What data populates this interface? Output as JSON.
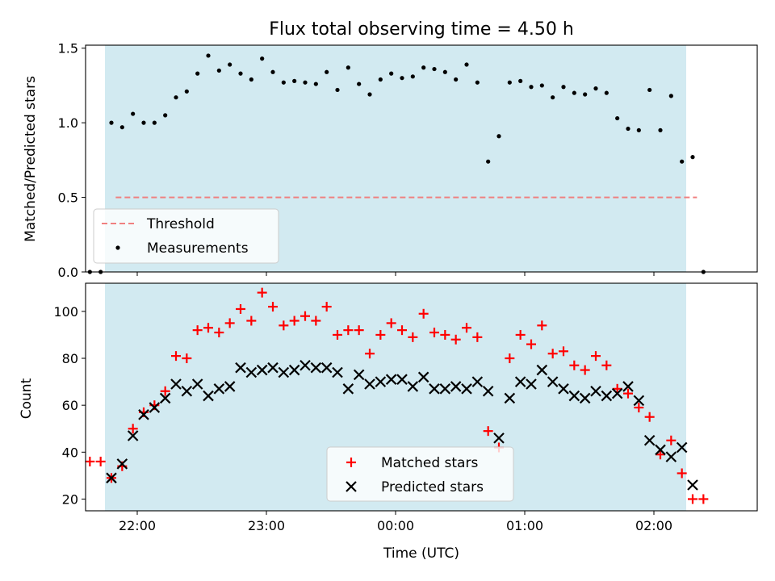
{
  "chart_data": [
    {
      "type": "scatter",
      "title": "Flux total observing time = 4.50 h",
      "xlabel": "",
      "ylabel": "Matched/Predicted stars",
      "xlim": [
        "21:36",
        "02:48"
      ],
      "ylim": [
        0,
        1.52
      ],
      "x_tick_labels_visible": false,
      "x_ticks": [
        "22:00",
        "23:00",
        "00:00",
        "01:00",
        "02:00"
      ],
      "y_ticks": [
        0.0,
        0.5,
        1.0,
        1.5
      ],
      "y_tick_labels": [
        "0.0",
        "0.5",
        "1.0",
        "1.5"
      ],
      "shaded_span": {
        "start": "21:45",
        "end": "02:15",
        "color": "#add8e6"
      },
      "threshold": {
        "name": "Threshold",
        "value": 0.5,
        "x_start": "21:50",
        "x_end": "02:20",
        "color": "#f08080",
        "style": "dashed"
      },
      "legend": {
        "placement": "lower-left",
        "entries": [
          "Threshold",
          "Measurements"
        ]
      },
      "series": [
        {
          "name": "Measurements",
          "marker": "dot",
          "color": "#000000",
          "x": [
            "21:48",
            "21:53",
            "21:58",
            "22:03",
            "22:08",
            "22:13",
            "22:18",
            "22:23",
            "22:28",
            "22:33",
            "22:38",
            "22:43",
            "22:48",
            "22:53",
            "22:58",
            "23:03",
            "23:08",
            "23:13",
            "23:18",
            "23:23",
            "23:28",
            "23:33",
            "23:38",
            "23:43",
            "23:48",
            "23:53",
            "23:58",
            "00:03",
            "00:08",
            "00:13",
            "00:18",
            "00:23",
            "00:28",
            "00:33",
            "00:38",
            "00:43",
            "00:48",
            "00:53",
            "00:58",
            "01:03",
            "01:08",
            "01:13",
            "01:18",
            "01:23",
            "01:28",
            "01:33",
            "01:38",
            "01:43",
            "01:48",
            "01:53",
            "01:58",
            "02:03",
            "02:08",
            "02:13"
          ],
          "y": [
            1.0,
            0.97,
            1.06,
            1.0,
            1.0,
            1.05,
            1.17,
            1.21,
            1.33,
            1.45,
            1.35,
            1.39,
            1.33,
            1.29,
            1.43,
            1.34,
            1.27,
            1.28,
            1.27,
            1.26,
            1.34,
            1.22,
            1.37,
            1.26,
            1.19,
            1.29,
            1.33,
            1.3,
            1.31,
            1.37,
            1.36,
            1.34,
            1.29,
            1.39,
            1.27,
            0.74,
            0.91,
            1.27,
            1.28,
            1.24,
            1.25,
            1.17,
            1.24,
            1.2,
            1.19,
            1.23,
            1.2,
            1.03,
            0.96,
            0.95,
            1.22,
            0.95,
            1.18,
            0.74
          ]
        }
      ],
      "extra_points": {
        "x": [
          "21:38",
          "21:43",
          "02:18",
          "02:23"
        ],
        "y": [
          0.0,
          0.0,
          0.77,
          0.0
        ]
      }
    },
    {
      "type": "scatter",
      "title": "",
      "xlabel": "Time (UTC)",
      "ylabel": "Count",
      "xlim": [
        "21:36",
        "02:48"
      ],
      "ylim": [
        15,
        112
      ],
      "x_ticks": [
        "22:00",
        "23:00",
        "00:00",
        "01:00",
        "02:00"
      ],
      "x_tick_labels": [
        "22:00",
        "23:00",
        "00:00",
        "01:00",
        "02:00"
      ],
      "y_ticks": [
        20,
        40,
        60,
        80,
        100
      ],
      "y_tick_labels": [
        "20",
        "40",
        "60",
        "80",
        "100"
      ],
      "shaded_span": {
        "start": "21:45",
        "end": "02:15",
        "color": "#add8e6"
      },
      "legend": {
        "placement": "lower-center",
        "entries": [
          "Matched stars",
          "Predicted stars"
        ]
      },
      "series": [
        {
          "name": "Matched stars",
          "marker": "plus",
          "color": "#ff0000",
          "x": [
            "21:38",
            "21:43",
            "21:48",
            "21:53",
            "21:58",
            "22:03",
            "22:08",
            "22:13",
            "22:18",
            "22:23",
            "22:28",
            "22:33",
            "22:38",
            "22:43",
            "22:48",
            "22:53",
            "22:58",
            "23:03",
            "23:08",
            "23:13",
            "23:18",
            "23:23",
            "23:28",
            "23:33",
            "23:38",
            "23:43",
            "23:48",
            "23:53",
            "23:58",
            "00:03",
            "00:08",
            "00:13",
            "00:18",
            "00:23",
            "00:28",
            "00:33",
            "00:38",
            "00:43",
            "00:48",
            "00:53",
            "00:58",
            "01:03",
            "01:08",
            "01:13",
            "01:18",
            "01:23",
            "01:28",
            "01:33",
            "01:38",
            "01:43",
            "01:48",
            "01:53",
            "01:58",
            "02:03",
            "02:08",
            "02:13",
            "02:18",
            "02:23"
          ],
          "y": [
            36,
            36,
            29,
            34,
            50,
            57,
            60,
            66,
            81,
            80,
            92,
            93,
            91,
            95,
            101,
            96,
            108,
            102,
            94,
            96,
            98,
            96,
            102,
            90,
            92,
            92,
            82,
            90,
            95,
            92,
            89,
            99,
            91,
            90,
            88,
            93,
            89,
            49,
            42,
            80,
            90,
            86,
            94,
            82,
            83,
            77,
            75,
            81,
            77,
            67,
            65,
            59,
            55,
            39,
            45,
            31,
            20,
            20
          ]
        },
        {
          "name": "Predicted stars",
          "marker": "x",
          "color": "#000000",
          "x": [
            "21:48",
            "21:53",
            "21:58",
            "22:03",
            "22:08",
            "22:13",
            "22:18",
            "22:23",
            "22:28",
            "22:33",
            "22:38",
            "22:43",
            "22:48",
            "22:53",
            "22:58",
            "23:03",
            "23:08",
            "23:13",
            "23:18",
            "23:23",
            "23:28",
            "23:33",
            "23:38",
            "23:43",
            "23:48",
            "23:53",
            "23:58",
            "00:03",
            "00:08",
            "00:13",
            "00:18",
            "00:23",
            "00:28",
            "00:33",
            "00:38",
            "00:43",
            "00:48",
            "00:53",
            "00:58",
            "01:03",
            "01:08",
            "01:13",
            "01:18",
            "01:23",
            "01:28",
            "01:33",
            "01:38",
            "01:43",
            "01:48",
            "01:53",
            "01:58",
            "02:03",
            "02:08",
            "02:13",
            "02:18"
          ],
          "y": [
            29,
            35,
            47,
            56,
            59,
            63,
            69,
            66,
            69,
            64,
            67,
            68,
            76,
            74,
            75,
            76,
            74,
            75,
            77,
            76,
            76,
            74,
            67,
            73,
            69,
            70,
            71,
            71,
            68,
            72,
            67,
            67,
            68,
            67,
            70,
            66,
            46,
            63,
            70,
            69,
            75,
            70,
            67,
            64,
            63,
            66,
            64,
            65,
            68,
            62,
            45,
            41,
            38,
            42,
            26
          ]
        }
      ]
    }
  ]
}
